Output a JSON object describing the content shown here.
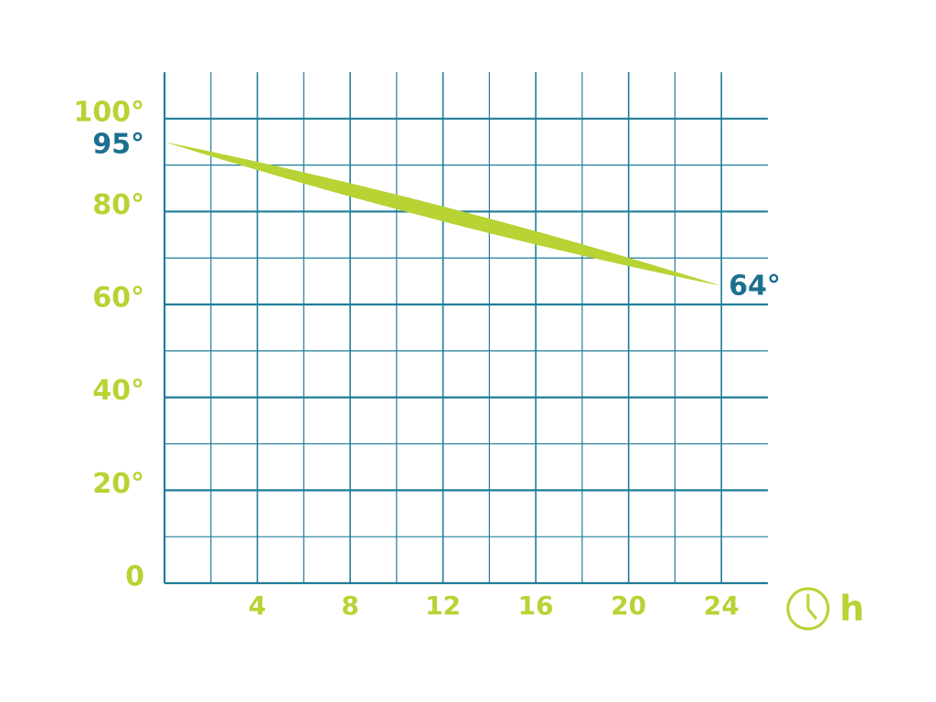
{
  "chart_data": {
    "type": "line",
    "x_label": "h",
    "x": [
      0,
      24
    ],
    "series": [
      {
        "color": "#b7d334",
        "values": [
          95,
          64
        ],
        "value_labels": [
          "95°",
          "64°"
        ],
        "label_color": "#1b6f8f"
      }
    ],
    "xlim": [
      0,
      26
    ],
    "ylim": [
      0,
      110
    ],
    "xticks": [
      4,
      8,
      12,
      16,
      20,
      24
    ],
    "x_minor_ticks": [
      2,
      6,
      10,
      14,
      18,
      22
    ],
    "yticks": [
      0,
      {
        "value": 20,
        "label": "20°"
      },
      {
        "value": 40,
        "label": "40°"
      },
      {
        "value": 60,
        "label": "60°"
      },
      {
        "value": 80,
        "label": "80°"
      },
      {
        "value": 100,
        "label": "100°"
      }
    ],
    "y_minor_ticks": [
      10,
      30,
      50,
      70,
      90
    ],
    "grid": true,
    "grid_color": "#1f7c98",
    "tick_label_color": "#b7d334"
  }
}
